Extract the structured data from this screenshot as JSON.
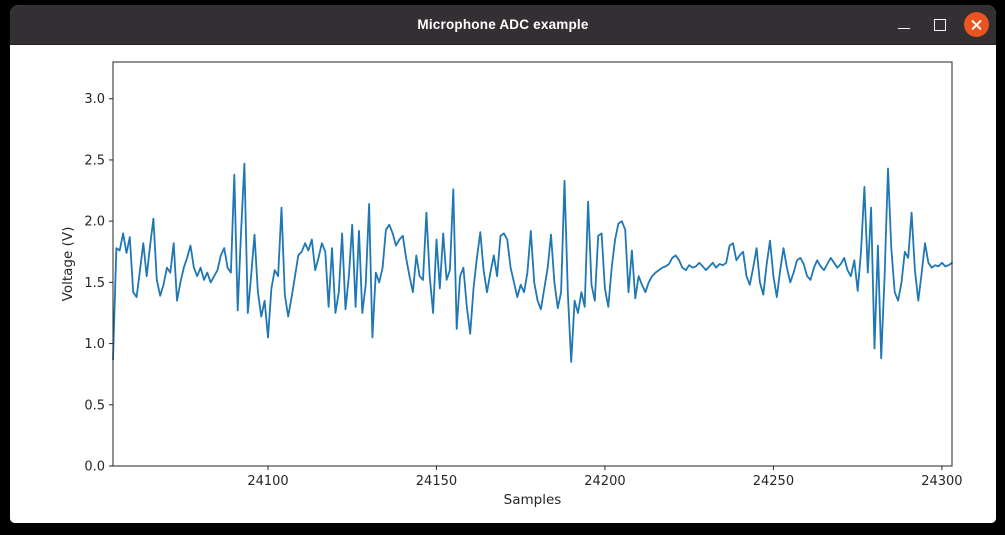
{
  "window": {
    "title": "Microphone ADC example"
  },
  "colors": {
    "titlebar_background": "#332f33",
    "titlebar_text": "#ffffff",
    "close_button": "#e95420",
    "figure_background": "#ffffff",
    "line_color": "#1f77b4",
    "axis_color": "#262626"
  },
  "chart_data": {
    "type": "line",
    "title": "",
    "xlabel": "Samples",
    "ylabel": "Voltage (V)",
    "legend": null,
    "grid": false,
    "x_start": 24054,
    "x_step": 1,
    "xlim": [
      24054,
      24303
    ],
    "ylim": [
      0,
      3.3
    ],
    "x_ticks": [
      24100,
      24150,
      24200,
      24250,
      24300
    ],
    "y_ticks": [
      0.0,
      0.5,
      1.0,
      1.5,
      2.0,
      2.5,
      3.0
    ],
    "values": [
      0.87,
      1.78,
      1.76,
      1.9,
      1.74,
      1.87,
      1.42,
      1.38,
      1.6,
      1.82,
      1.55,
      1.8,
      2.02,
      1.52,
      1.39,
      1.48,
      1.62,
      1.58,
      1.82,
      1.35,
      1.5,
      1.62,
      1.7,
      1.8,
      1.62,
      1.55,
      1.62,
      1.52,
      1.58,
      1.5,
      1.55,
      1.6,
      1.72,
      1.78,
      1.62,
      1.58,
      2.38,
      1.27,
      1.9,
      2.47,
      1.25,
      1.55,
      1.89,
      1.42,
      1.22,
      1.35,
      1.05,
      1.45,
      1.6,
      1.55,
      2.11,
      1.4,
      1.22,
      1.38,
      1.55,
      1.72,
      1.75,
      1.82,
      1.76,
      1.85,
      1.6,
      1.7,
      1.82,
      1.75,
      1.3,
      1.78,
      1.25,
      1.42,
      1.9,
      1.28,
      1.55,
      1.97,
      1.3,
      1.92,
      1.25,
      1.48,
      2.14,
      1.05,
      1.58,
      1.5,
      1.62,
      1.93,
      1.97,
      1.9,
      1.8,
      1.85,
      1.88,
      1.7,
      1.55,
      1.42,
      1.72,
      1.55,
      1.52,
      2.07,
      1.55,
      1.25,
      1.85,
      1.45,
      1.9,
      1.52,
      1.6,
      2.26,
      1.12,
      1.55,
      1.62,
      1.3,
      1.08,
      1.45,
      1.7,
      1.91,
      1.6,
      1.42,
      1.58,
      1.72,
      1.55,
      1.88,
      1.9,
      1.85,
      1.62,
      1.5,
      1.38,
      1.48,
      1.42,
      1.58,
      1.92,
      1.5,
      1.35,
      1.28,
      1.45,
      1.62,
      1.89,
      1.5,
      1.29,
      1.42,
      2.33,
      1.4,
      0.85,
      1.35,
      1.25,
      1.42,
      1.3,
      2.16,
      1.48,
      1.35,
      1.88,
      1.9,
      1.45,
      1.3,
      1.62,
      1.85,
      1.98,
      2.0,
      1.93,
      1.42,
      1.76,
      1.37,
      1.55,
      1.48,
      1.42,
      1.5,
      1.55,
      1.58,
      1.6,
      1.62,
      1.63,
      1.65,
      1.7,
      1.72,
      1.68,
      1.62,
      1.6,
      1.64,
      1.62,
      1.63,
      1.66,
      1.63,
      1.6,
      1.63,
      1.66,
      1.62,
      1.65,
      1.64,
      1.66,
      1.8,
      1.82,
      1.68,
      1.72,
      1.75,
      1.55,
      1.48,
      1.62,
      1.78,
      1.5,
      1.4,
      1.65,
      1.84,
      1.55,
      1.38,
      1.6,
      1.78,
      1.62,
      1.5,
      1.58,
      1.68,
      1.7,
      1.65,
      1.55,
      1.52,
      1.62,
      1.68,
      1.63,
      1.6,
      1.65,
      1.7,
      1.66,
      1.62,
      1.65,
      1.7,
      1.6,
      1.55,
      1.68,
      1.43,
      1.75,
      2.28,
      1.58,
      2.11,
      0.96,
      1.8,
      0.88,
      1.55,
      2.43,
      1.78,
      1.42,
      1.35,
      1.5,
      1.75,
      1.7,
      2.07,
      1.6,
      1.35,
      1.58,
      1.82,
      1.66,
      1.62,
      1.64,
      1.63,
      1.66,
      1.63,
      1.64,
      1.66
    ]
  }
}
